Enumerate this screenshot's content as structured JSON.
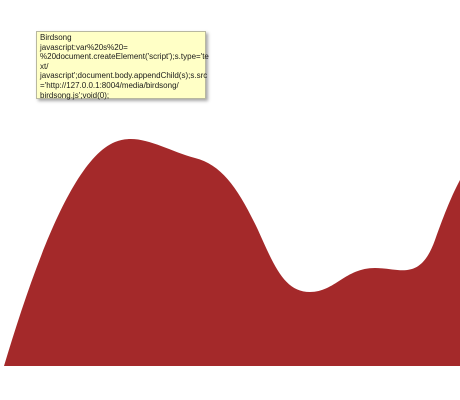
{
  "tooltip": {
    "lines": [
      "Birdsong",
      "javascript:var%20s%20=",
      "%20document.createElement('script');s.type='te",
      "xt/",
      "javascript';document.body.appendChild(s);s.src",
      "='http://127.0.0.1:8004/media/birdsong/",
      "birdsong.js';void(0);"
    ]
  },
  "colors": {
    "area_fill": "#a4292a",
    "tooltip_bg": "#ffffc6"
  }
}
